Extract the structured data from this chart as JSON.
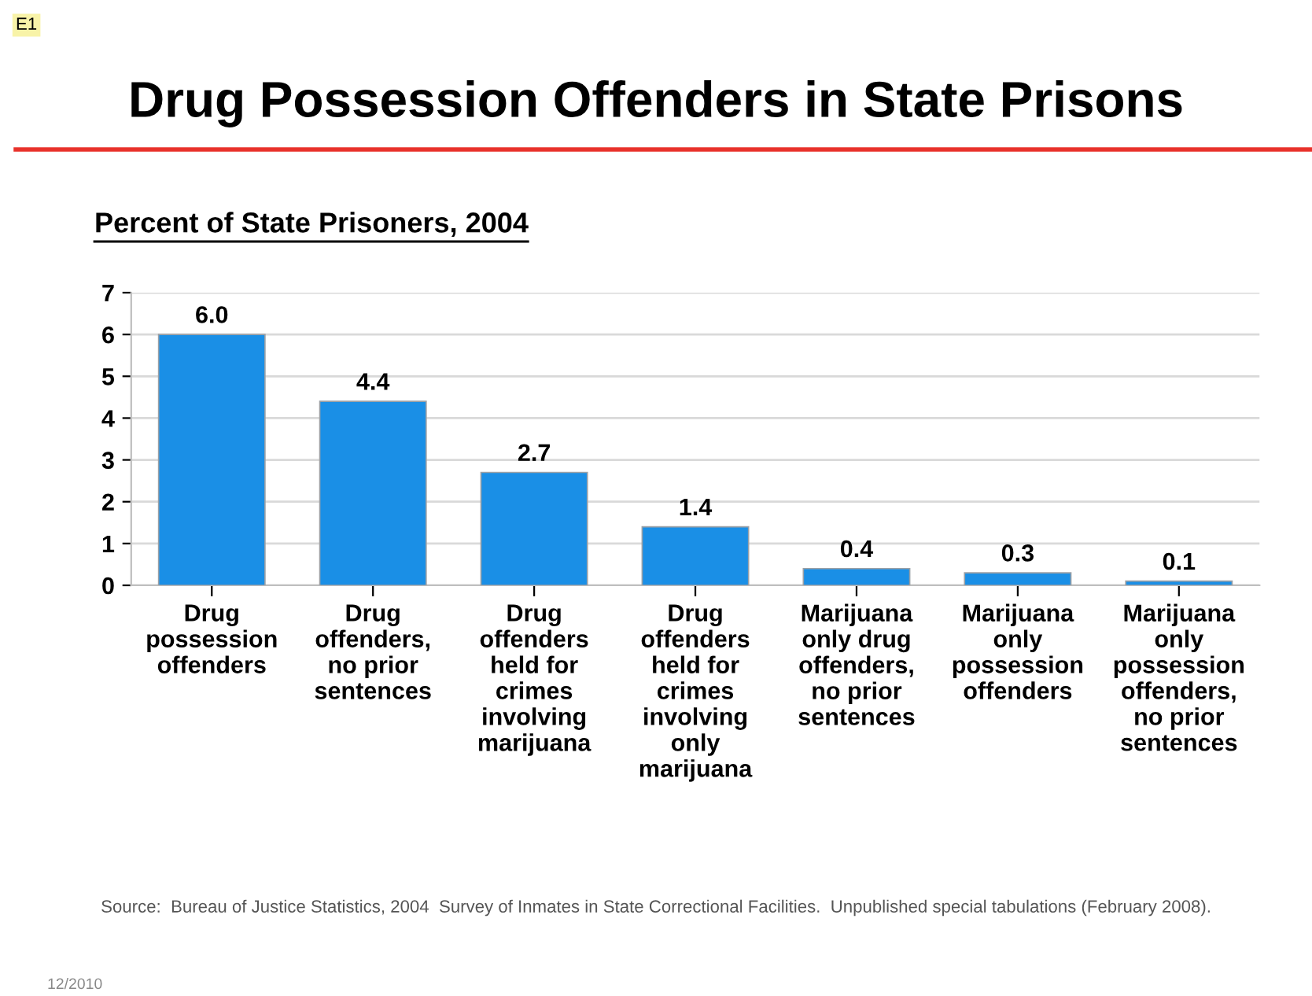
{
  "chart_data": {
    "type": "bar",
    "title": "Drug Possession Offenders in State Prisons",
    "subtitle": "Percent of State Prisoners, 2004",
    "categories": [
      "Drug\npossession\noffenders",
      "Drug\noffenders,\nno prior\nsentences",
      "Drug\noffenders\nheld for\ncrimes\ninvolving\nmarijuana",
      "Drug\noffenders\nheld for\ncrimes\ninvolving\nonly\nmarijuana",
      "Marijuana\nonly drug\noffenders,\nno prior\nsentences",
      "Marijuana\nonly\npossession\noffenders",
      "Marijuana\nonly\npossession\noffenders,\nno prior\nsentences"
    ],
    "values": [
      6.0,
      4.4,
      2.7,
      1.4,
      0.4,
      0.3,
      0.1
    ],
    "value_labels": [
      "6.0",
      "4.4",
      "2.7",
      "1.4",
      "0.4",
      "0.3",
      "0.1"
    ],
    "color": "#1a8fe6",
    "ylim": [
      0,
      7
    ],
    "yticks": [
      0,
      1,
      2,
      3,
      4,
      5,
      6,
      7
    ],
    "grid": "y",
    "legend": false,
    "annotations": [
      "E1",
      "Source:  Bureau of Justice Statistics, 2004  Survey of Inmates in State Correctional Facilities.  Unpublished special tabulations (February 2008).",
      "12/2010"
    ]
  }
}
